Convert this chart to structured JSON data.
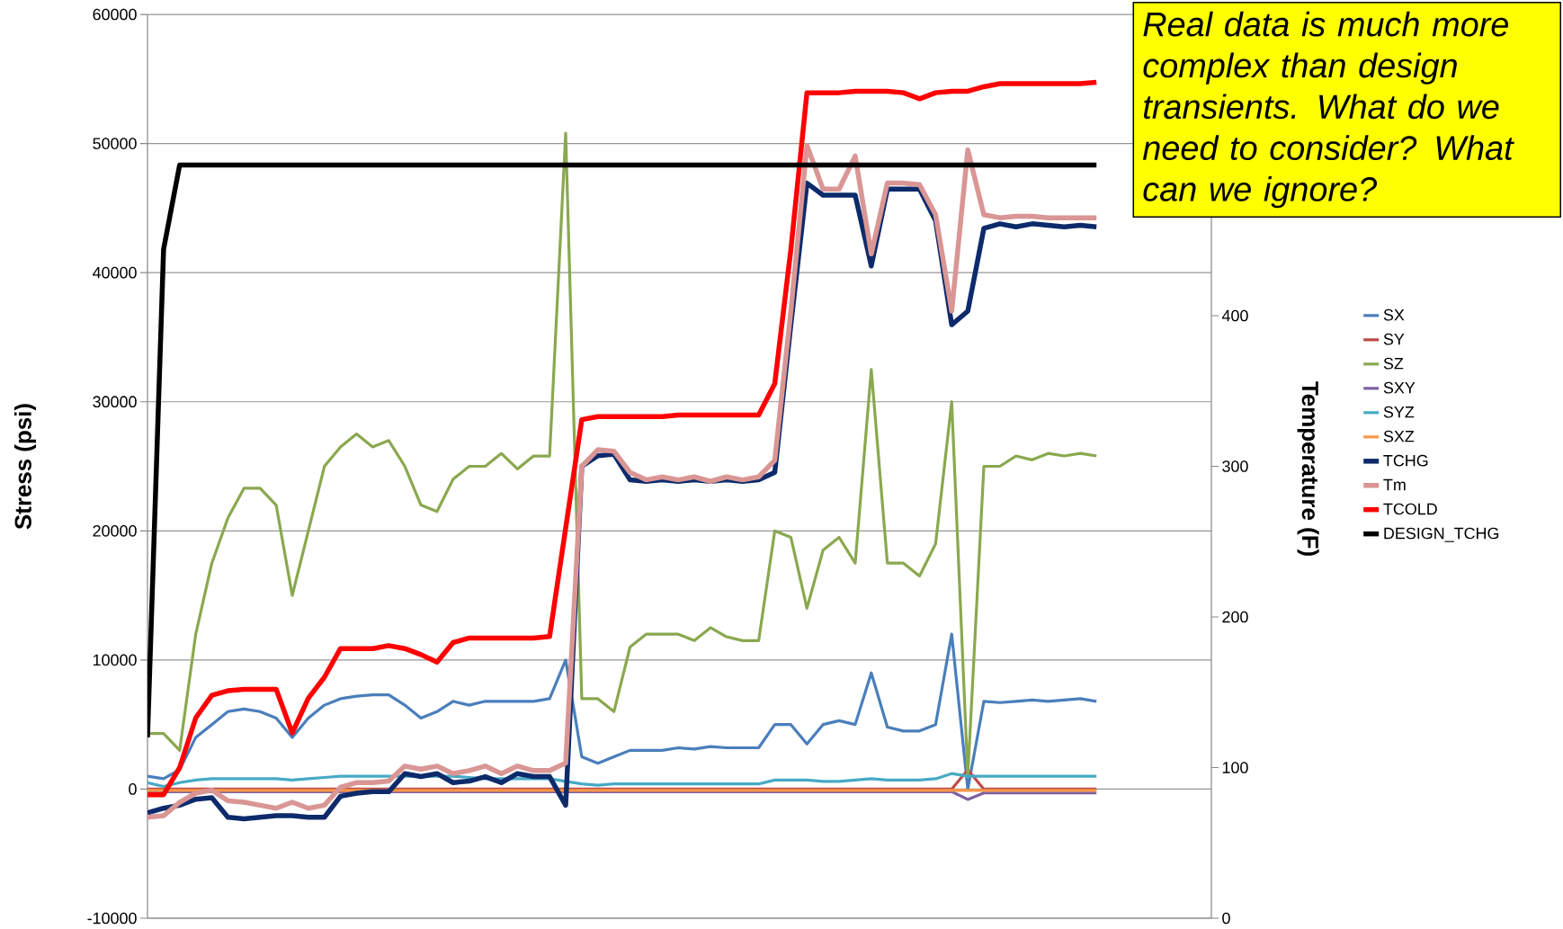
{
  "chart_data": {
    "type": "line",
    "categories": [
      null,
      null,
      null,
      null,
      null,
      null,
      null,
      null,
      null,
      null,
      null,
      null,
      null,
      null,
      null,
      null,
      null,
      null,
      null,
      null,
      null,
      null,
      null,
      null,
      null,
      null,
      null,
      null,
      null,
      null,
      null,
      null,
      null,
      null,
      null,
      null,
      null,
      null,
      null,
      null,
      null,
      null,
      null,
      null,
      null,
      null,
      null,
      null,
      null,
      null,
      null,
      null,
      null,
      null,
      null,
      null,
      null,
      null,
      null,
      null
    ],
    "ylabel": "Stress (psi)",
    "y2label": "Temperature (F)",
    "ylim": [
      -10000,
      60000
    ],
    "yticks": [
      -10000,
      0,
      10000,
      20000,
      30000,
      40000,
      50000,
      60000
    ],
    "y2lim": [
      0,
      600
    ],
    "y2ticks": [
      0,
      100,
      200,
      300,
      400
    ],
    "grid": "y",
    "legend": "right",
    "annotations": [
      "Real data is much more complex than design transients. What do we need to consider? What can we ignore?"
    ],
    "series": [
      {
        "name": "SX",
        "color": "#4a7ebb",
        "values": [
          1000,
          800,
          1500,
          4000,
          5000,
          6000,
          6200,
          6000,
          5500,
          4000,
          5500,
          6500,
          7000,
          7200,
          7300,
          7300,
          6500,
          5500,
          6000,
          6800,
          6500,
          6800,
          6800,
          6800,
          6800,
          7000,
          10000,
          2500,
          2000,
          2500,
          3000,
          3000,
          3000,
          3200,
          3100,
          3300,
          3200,
          3200,
          3200,
          5000,
          5000,
          3500,
          5000,
          5300,
          5000,
          9000,
          4800,
          4500,
          4500,
          5000,
          12000,
          0,
          6800,
          6700,
          6800,
          6900,
          6800,
          6900,
          7000,
          6800
        ]
      },
      {
        "name": "SY",
        "color": "#be4b48",
        "values": [
          0,
          0,
          0,
          0,
          0,
          0,
          0,
          0,
          0,
          0,
          0,
          0,
          0,
          0,
          0,
          0,
          0,
          0,
          0,
          0,
          0,
          0,
          0,
          0,
          0,
          0,
          0,
          0,
          0,
          0,
          0,
          0,
          0,
          0,
          0,
          0,
          0,
          0,
          0,
          0,
          0,
          0,
          0,
          0,
          0,
          0,
          0,
          0,
          0,
          0,
          0,
          1500,
          0,
          0,
          0,
          0,
          0,
          0,
          0,
          0
        ]
      },
      {
        "name": "SZ",
        "color": "#8aa84f",
        "values": [
          4300,
          4300,
          3000,
          12000,
          17500,
          21000,
          23300,
          23300,
          22000,
          15000,
          20000,
          25000,
          26500,
          27500,
          26500,
          27000,
          25000,
          22000,
          21500,
          24000,
          25000,
          25000,
          26000,
          24800,
          25800,
          25800,
          50800,
          7000,
          7000,
          6000,
          11000,
          12000,
          12000,
          12000,
          11500,
          12500,
          11800,
          11500,
          11500,
          20000,
          19500,
          14000,
          18500,
          19500,
          17500,
          32500,
          17500,
          17500,
          16500,
          19000,
          30000,
          1000,
          25000,
          25000,
          25800,
          25500,
          26000,
          25800,
          26000,
          25800
        ]
      },
      {
        "name": "SXY",
        "color": "#7d60a0",
        "values": [
          -200,
          -200,
          -200,
          -200,
          -200,
          -200,
          -200,
          -200,
          -200,
          -200,
          -200,
          -200,
          -200,
          -200,
          -200,
          -200,
          -200,
          -200,
          -200,
          -200,
          -200,
          -200,
          -200,
          -200,
          -200,
          -200,
          -200,
          -200,
          -200,
          -200,
          -200,
          -200,
          -200,
          -200,
          -200,
          -200,
          -200,
          -200,
          -200,
          -200,
          -200,
          -200,
          -200,
          -200,
          -200,
          -200,
          -200,
          -200,
          -200,
          -200,
          -200,
          -800,
          -300,
          -300,
          -300,
          -300,
          -300,
          -300,
          -300,
          -300
        ]
      },
      {
        "name": "SYZ",
        "color": "#46aac5",
        "values": [
          500,
          200,
          500,
          700,
          800,
          800,
          800,
          800,
          800,
          700,
          800,
          900,
          1000,
          1000,
          1000,
          1000,
          1000,
          1000,
          1000,
          1000,
          900,
          800,
          800,
          800,
          800,
          800,
          600,
          400,
          300,
          400,
          400,
          400,
          400,
          400,
          400,
          400,
          400,
          400,
          400,
          700,
          700,
          700,
          600,
          600,
          700,
          800,
          700,
          700,
          700,
          800,
          1200,
          1000,
          1000,
          1000,
          1000,
          1000,
          1000,
          1000,
          1000,
          1000
        ]
      },
      {
        "name": "SXZ",
        "color": "#f79646",
        "values": [
          -100,
          -100,
          -100,
          -100,
          -100,
          -100,
          -100,
          -100,
          -100,
          -100,
          -100,
          -100,
          -100,
          -100,
          -100,
          -100,
          -100,
          -100,
          -100,
          -100,
          -100,
          -100,
          -100,
          -100,
          -100,
          -100,
          -100,
          -100,
          -100,
          -100,
          -100,
          -100,
          -100,
          -100,
          -100,
          -100,
          -100,
          -100,
          -100,
          -100,
          -100,
          -100,
          -100,
          -100,
          -100,
          -100,
          -100,
          -100,
          -100,
          -100,
          -100,
          -100,
          -100,
          -100,
          -100,
          -100,
          -100,
          -100,
          -100,
          -100
        ]
      },
      {
        "name": "TCHG",
        "color": "#0d2b6b",
        "axis": "y2",
        "values": [
          70,
          73,
          75,
          79,
          80,
          67,
          66,
          67,
          68,
          68,
          67,
          67,
          81,
          83,
          84,
          84,
          96,
          94,
          96,
          90,
          91,
          94,
          90,
          96,
          94,
          94,
          75,
          300,
          307,
          308,
          291,
          290,
          291,
          290,
          291,
          290,
          291,
          290,
          291,
          296,
          394,
          488,
          480,
          480,
          480,
          433,
          484,
          484,
          484,
          463,
          394,
          403,
          458,
          461,
          459,
          461,
          460,
          459,
          460,
          459
        ]
      },
      {
        "name": "Tm",
        "color": "#d99694",
        "axis": "y2",
        "values": [
          67,
          68,
          77,
          83,
          85,
          78,
          77,
          75,
          73,
          77,
          73,
          75,
          87,
          90,
          90,
          91,
          101,
          99,
          101,
          96,
          98,
          101,
          96,
          101,
          98,
          98,
          103,
          300,
          311,
          310,
          296,
          291,
          293,
          291,
          293,
          290,
          293,
          291,
          293,
          304,
          403,
          513,
          484,
          484,
          506,
          441,
          488,
          488,
          487,
          467,
          403,
          510,
          467,
          465,
          466,
          466,
          465,
          465,
          465,
          465
        ]
      },
      {
        "name": "TCOLD",
        "color": "#ff0000",
        "axis": "y2",
        "values": [
          82,
          82,
          100,
          133,
          148,
          151,
          152,
          152,
          152,
          123,
          146,
          160,
          179,
          179,
          179,
          181,
          179,
          175,
          170,
          183,
          186,
          186,
          186,
          186,
          186,
          187,
          259,
          331,
          333,
          333,
          333,
          333,
          333,
          334,
          334,
          334,
          334,
          334,
          334,
          355,
          444,
          548,
          548,
          548,
          549,
          549,
          549,
          548,
          544,
          548,
          549,
          549,
          552,
          554,
          554,
          554,
          554,
          554,
          554,
          555
        ]
      },
      {
        "name": "DESIGN_TCHG",
        "color": "#000000",
        "axis": "y2",
        "values": [
          120,
          444,
          500,
          500,
          500,
          500,
          500,
          500,
          500,
          500,
          500,
          500,
          500,
          500,
          500,
          500,
          500,
          500,
          500,
          500,
          500,
          500,
          500,
          500,
          500,
          500,
          500,
          500,
          500,
          500,
          500,
          500,
          500,
          500,
          500,
          500,
          500,
          500,
          500,
          500,
          500,
          500,
          500,
          500,
          500,
          500,
          500,
          500,
          500,
          500,
          500,
          500,
          500,
          500,
          500,
          500,
          500,
          500,
          500,
          500
        ]
      }
    ]
  }
}
